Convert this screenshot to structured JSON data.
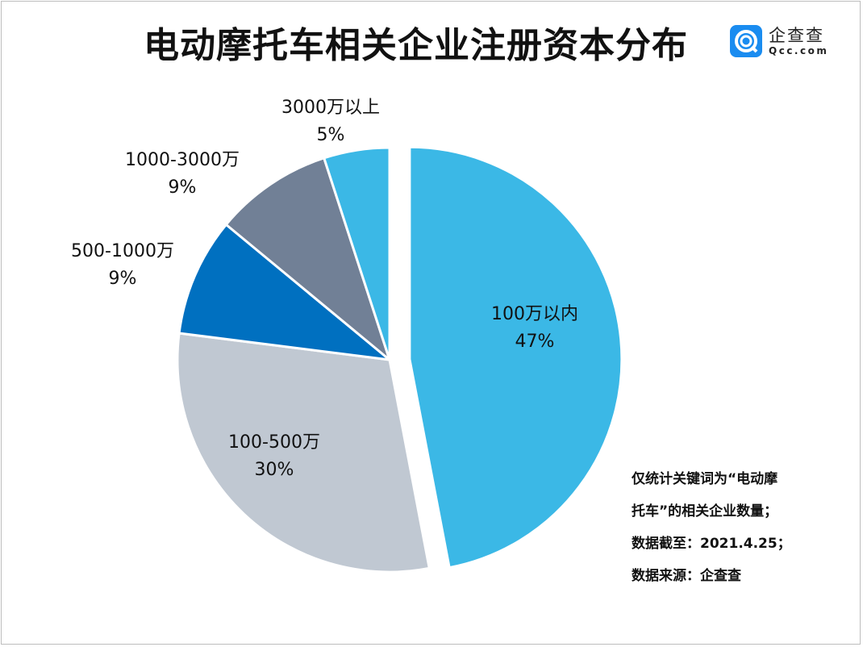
{
  "title": "电动摩托车相关企业注册资本分布",
  "logo": {
    "cn": "企查查",
    "en": "Qcc.com"
  },
  "notes": [
    "仅统计关键词为“电动摩",
    "托车”的相关企业数量；",
    "数据截至：2021.4.25；",
    "数据来源：企查查"
  ],
  "chart_data": {
    "type": "pie",
    "title": "电动摩托车相关企业注册资本分布",
    "start": "12 o'clock, clockwise",
    "slices": [
      {
        "label": "100万以内",
        "value": 47,
        "pct": "47%",
        "color": "#3BB8E6",
        "exploded": true
      },
      {
        "label": "100-500万",
        "value": 30,
        "pct": "30%",
        "color": "#C0C8D2",
        "exploded": false
      },
      {
        "label": "500-1000万",
        "value": 9,
        "pct": "9%",
        "color": "#0070C0",
        "exploded": false
      },
      {
        "label": "1000-3000万",
        "value": 9,
        "pct": "9%",
        "color": "#718096",
        "exploded": false
      },
      {
        "label": "3000万以上",
        "value": 5,
        "pct": "5%",
        "color": "#3BB8E6",
        "exploded": false
      }
    ]
  }
}
